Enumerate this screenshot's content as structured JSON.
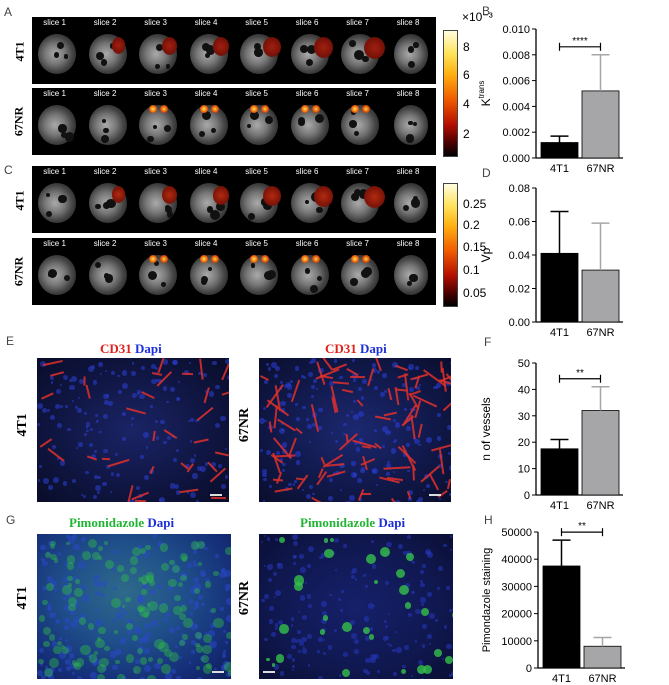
{
  "panels": {
    "A": "A",
    "B": "B",
    "C": "C",
    "D": "D",
    "E": "E",
    "F": "F",
    "G": "G",
    "H": "H"
  },
  "mri": {
    "slices": [
      "slice 1",
      "slice 2",
      "slice 3",
      "slice 4",
      "slice 5",
      "slice 6",
      "slice 7",
      "slice 8"
    ],
    "row_top": "4T1",
    "row_bottom": "67NR",
    "A_colorbar": {
      "exponent": "×10⁻³",
      "ticks": [
        "8",
        "6",
        "4",
        "2"
      ]
    },
    "C_colorbar": {
      "ticks": [
        "0.25",
        "0.2",
        "0.15",
        "0.1",
        "0.05"
      ]
    }
  },
  "micro": {
    "E_left_title_1": "CD31",
    "E_left_title_2": "Dapi",
    "E_right_title_1": "CD31",
    "E_right_title_2": "Dapi",
    "G_left_title_1": "Pimonidazole",
    "G_left_title_2": "Dapi",
    "G_right_title_1": "Pimonidazole",
    "G_right_title_2": "Dapi",
    "E_left_label": "4T1",
    "E_right_label": "67NR",
    "G_left_label": "4T1",
    "G_right_label": "67NR"
  },
  "colors": {
    "black": "#000000",
    "grey": "#a6a6a8",
    "cd31": "#e0201c",
    "dapi": "#1c2fd8",
    "pimo": "#22b535"
  },
  "chart_data": [
    {
      "id": "B",
      "type": "bar",
      "categories": [
        "4T1",
        "67NR"
      ],
      "values": [
        0.0012,
        0.0052
      ],
      "errors": [
        0.0005,
        0.0028
      ],
      "ylabel": "K",
      "ylabel_sup": "trans",
      "ylim": [
        0,
        0.01
      ],
      "yticks": [
        "0.000",
        "0.002",
        "0.004",
        "0.006",
        "0.008",
        "0.010"
      ],
      "yticks_num": [
        0,
        0.002,
        0.004,
        0.006,
        0.008,
        0.01
      ],
      "significance": "****"
    },
    {
      "id": "D",
      "type": "bar",
      "categories": [
        "4T1",
        "67NR"
      ],
      "values": [
        0.041,
        0.031
      ],
      "errors": [
        0.025,
        0.028
      ],
      "ylabel": "Vp",
      "ylim": [
        0,
        0.08
      ],
      "yticks": [
        "0.00",
        "0.02",
        "0.04",
        "0.06",
        "0.08"
      ],
      "yticks_num": [
        0,
        0.02,
        0.04,
        0.06,
        0.08
      ],
      "significance": ""
    },
    {
      "id": "F",
      "type": "bar",
      "categories": [
        "4T1",
        "67NR"
      ],
      "values": [
        17.5,
        32
      ],
      "errors": [
        3.5,
        9
      ],
      "ylabel": "n of vessels",
      "ylim": [
        0,
        50
      ],
      "yticks": [
        "0",
        "10",
        "20",
        "30",
        "40",
        "50"
      ],
      "yticks_num": [
        0,
        10,
        20,
        30,
        40,
        50
      ],
      "significance": "**"
    },
    {
      "id": "H",
      "type": "bar",
      "categories": [
        "4T1",
        "67NR"
      ],
      "values": [
        37500,
        8000
      ],
      "errors": [
        9500,
        3200
      ],
      "ylabel": "Pimondazole staining",
      "ylim": [
        0,
        50000
      ],
      "yticks": [
        "0",
        "10000",
        "20000",
        "30000",
        "40000",
        "50000"
      ],
      "yticks_num": [
        0,
        10000,
        20000,
        30000,
        40000,
        50000
      ],
      "significance": "**"
    }
  ]
}
